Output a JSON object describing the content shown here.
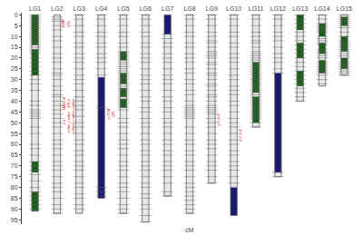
{
  "chart_data": {
    "type": "linkage_map",
    "xlabel": "cM",
    "categories": [
      "LG1",
      "LG2",
      "LG3",
      "LG4",
      "LG5",
      "LG6",
      "LG7",
      "LG8",
      "LG9",
      "LG10",
      "LG11",
      "LG12",
      "LG13",
      "LG14",
      "LG15"
    ],
    "values": [
      91,
      92,
      92,
      85,
      92,
      96,
      84,
      92,
      78,
      93,
      52,
      75,
      40,
      33,
      28
    ],
    "color": "#e8e8e8",
    "edge_color": "#777777",
    "blocks": [
      {
        "color": "#1a5c1a",
        "segments": [
          {
            "category": "LG1",
            "start": 0,
            "end": 14
          },
          {
            "category": "LG1",
            "start": 16,
            "end": 28
          },
          {
            "category": "LG1",
            "start": 68,
            "end": 73
          },
          {
            "category": "LG1",
            "start": 82,
            "end": 91
          },
          {
            "category": "LG5",
            "start": 17,
            "end": 21
          },
          {
            "category": "LG5",
            "start": 27,
            "end": 32
          },
          {
            "category": "LG5",
            "start": 34,
            "end": 38
          },
          {
            "category": "LG5",
            "start": 39,
            "end": 43
          },
          {
            "category": "LG11",
            "start": 22,
            "end": 36
          },
          {
            "category": "LG11",
            "start": 38,
            "end": 50
          },
          {
            "category": "LG13",
            "start": 0,
            "end": 7
          },
          {
            "category": "LG13",
            "start": 13,
            "end": 20
          },
          {
            "category": "LG13",
            "start": 26,
            "end": 33
          },
          {
            "category": "LG14",
            "start": 4,
            "end": 10
          },
          {
            "category": "LG14",
            "start": 13,
            "end": 18
          },
          {
            "category": "LG14",
            "start": 21,
            "end": 27
          },
          {
            "category": "LG15",
            "start": 1,
            "end": 5
          },
          {
            "category": "LG15",
            "start": 10,
            "end": 17
          },
          {
            "category": "LG15",
            "start": 20,
            "end": 25
          }
        ]
      },
      {
        "color": "#1a1a6e",
        "segments": [
          {
            "category": "LG4",
            "start": 29,
            "end": 85
          },
          {
            "category": "LG7",
            "start": 0,
            "end": 9
          },
          {
            "category": "LG12",
            "start": 27,
            "end": 73
          },
          {
            "category": "LG10",
            "start": 80,
            "end": 93
          }
        ]
      }
    ],
    "marker_color": "#666666",
    "marker_positions": [
      [
        0,
        1,
        2,
        3,
        4,
        5,
        6,
        7,
        8,
        9,
        10,
        11,
        12,
        13,
        14,
        15,
        16,
        17,
        18,
        20,
        22,
        24,
        26,
        28,
        30,
        32,
        35,
        40,
        42,
        44,
        45,
        46,
        47,
        48,
        52,
        55,
        60,
        62,
        65,
        68,
        70,
        72,
        74,
        77,
        80,
        82,
        84,
        86,
        88,
        90
      ],
      [
        1,
        2,
        3,
        5,
        7,
        10,
        12,
        15,
        18,
        20,
        22,
        25,
        27,
        28,
        30,
        33,
        35,
        37,
        38,
        40,
        42,
        44,
        46,
        48,
        50,
        52,
        55,
        58,
        60,
        62,
        65,
        68,
        70,
        72,
        75,
        78,
        80,
        82,
        85,
        88,
        90,
        92
      ],
      [
        0,
        2,
        5,
        8,
        10,
        13,
        15,
        18,
        20,
        22,
        25,
        28,
        30,
        32,
        35,
        38,
        40,
        42,
        44,
        47,
        50,
        52,
        55,
        58,
        60,
        63,
        65,
        68,
        70,
        72,
        75,
        78,
        80,
        83,
        85,
        88,
        90
      ],
      [
        0,
        2,
        5,
        8,
        10,
        13,
        15,
        18,
        20,
        22,
        25,
        28,
        43,
        80,
        82,
        84
      ],
      [
        0,
        2,
        5,
        8,
        10,
        13,
        15,
        17,
        18,
        19,
        20,
        21,
        22,
        23,
        24,
        25,
        26,
        27,
        28,
        29,
        30,
        31,
        32,
        33,
        34,
        35,
        36,
        37,
        38,
        39,
        40,
        41,
        42,
        43,
        44,
        48,
        50,
        52,
        55,
        58,
        60,
        62,
        65,
        68,
        70,
        72,
        75,
        78,
        80,
        82,
        85,
        88,
        90,
        92
      ],
      [
        0,
        2,
        5,
        8,
        10,
        13,
        15,
        18,
        20,
        22,
        25,
        28,
        30,
        32,
        35,
        38,
        40,
        43,
        45,
        48,
        50,
        52,
        55,
        58,
        60,
        63,
        65,
        68,
        70,
        72,
        75,
        78,
        80,
        83,
        85,
        88,
        90,
        93,
        96
      ],
      [
        9,
        11,
        13,
        15,
        18,
        20,
        22,
        25,
        28,
        30,
        32,
        35,
        38,
        40,
        43,
        45,
        48,
        50,
        52,
        55,
        58,
        60,
        63,
        65,
        68,
        70,
        72,
        75,
        78,
        82,
        84
      ],
      [
        0,
        2,
        5,
        8,
        10,
        13,
        15,
        18,
        20,
        22,
        25,
        27,
        30,
        32,
        35,
        37,
        40,
        42,
        43,
        44,
        45,
        46,
        47,
        48,
        52,
        55,
        58,
        60,
        63,
        65,
        68,
        70,
        72,
        75,
        78,
        80,
        82,
        84,
        86,
        88,
        90,
        92
      ],
      [
        0,
        2,
        5,
        8,
        10,
        12,
        13,
        15,
        17,
        18,
        19,
        20,
        22,
        23,
        25,
        27,
        28,
        30,
        32,
        33,
        35,
        37,
        38,
        40,
        42,
        43,
        44,
        45,
        46,
        48,
        50,
        52,
        55,
        58,
        60,
        62,
        65,
        68,
        70,
        72,
        75,
        78
      ],
      [
        0,
        2,
        5,
        8,
        10,
        13,
        15,
        18,
        20,
        22,
        25,
        28,
        30,
        33,
        35,
        37,
        40,
        42,
        45,
        48,
        50,
        52,
        55,
        58,
        60,
        63,
        65,
        68,
        70,
        72,
        75,
        78
      ],
      [
        0,
        2,
        5,
        8,
        10,
        12,
        13,
        15,
        17,
        18,
        19,
        20,
        21,
        22,
        23,
        24,
        25,
        26,
        27,
        28,
        29,
        30,
        31,
        32,
        33,
        34,
        35,
        36,
        37,
        38,
        39,
        40,
        41,
        42,
        43,
        44,
        45,
        46,
        47,
        48,
        50,
        52
      ],
      [
        0,
        2,
        5,
        8,
        10,
        12,
        15,
        18,
        20,
        22,
        25,
        27,
        73,
        75
      ],
      [
        0,
        2,
        4,
        6,
        8,
        10,
        12,
        14,
        16,
        18,
        20,
        22,
        24,
        26,
        28,
        30,
        32,
        34,
        36,
        38,
        40
      ],
      [
        0,
        2,
        4,
        5,
        6,
        7,
        8,
        10,
        11,
        12,
        13,
        14,
        16,
        17,
        18,
        19,
        20,
        22,
        23,
        24,
        25,
        26,
        27,
        28,
        30,
        32
      ],
      [
        0,
        1,
        2,
        3,
        4,
        5,
        6,
        8,
        10,
        12,
        13,
        14,
        15,
        16,
        17,
        18,
        19,
        20,
        22,
        23,
        24,
        25,
        26,
        27,
        28
      ]
    ],
    "annotations": [
      {
        "category": "LG2",
        "y": 2,
        "text": "1388\nQTL",
        "color": "#cc0000"
      },
      {
        "category": "LG2",
        "y": 38,
        "text": "MAT1-4\nQTL2\npvalue",
        "color": "#cc0000"
      },
      {
        "category": "LG2",
        "y": 44,
        "text": "z-1\ncofan p.value\ncofan2 p.value",
        "color": "#cc0000"
      },
      {
        "category": "LG4",
        "y": 43,
        "text": "p=0.04\nQTL",
        "color": "#cc0000"
      },
      {
        "category": "LG9",
        "y": 46,
        "text": "g-1 y=1",
        "color": "#cc0000"
      },
      {
        "category": "LG10",
        "y": 53,
        "text": "g-1 y=1",
        "color": "#cc0000"
      }
    ],
    "ylim": [
      97,
      -1
    ],
    "yticks": [
      0,
      5,
      10,
      15,
      20,
      25,
      30,
      35,
      40,
      45,
      50,
      55,
      60,
      65,
      70,
      75,
      80,
      85,
      90,
      95
    ],
    "grid": false
  }
}
